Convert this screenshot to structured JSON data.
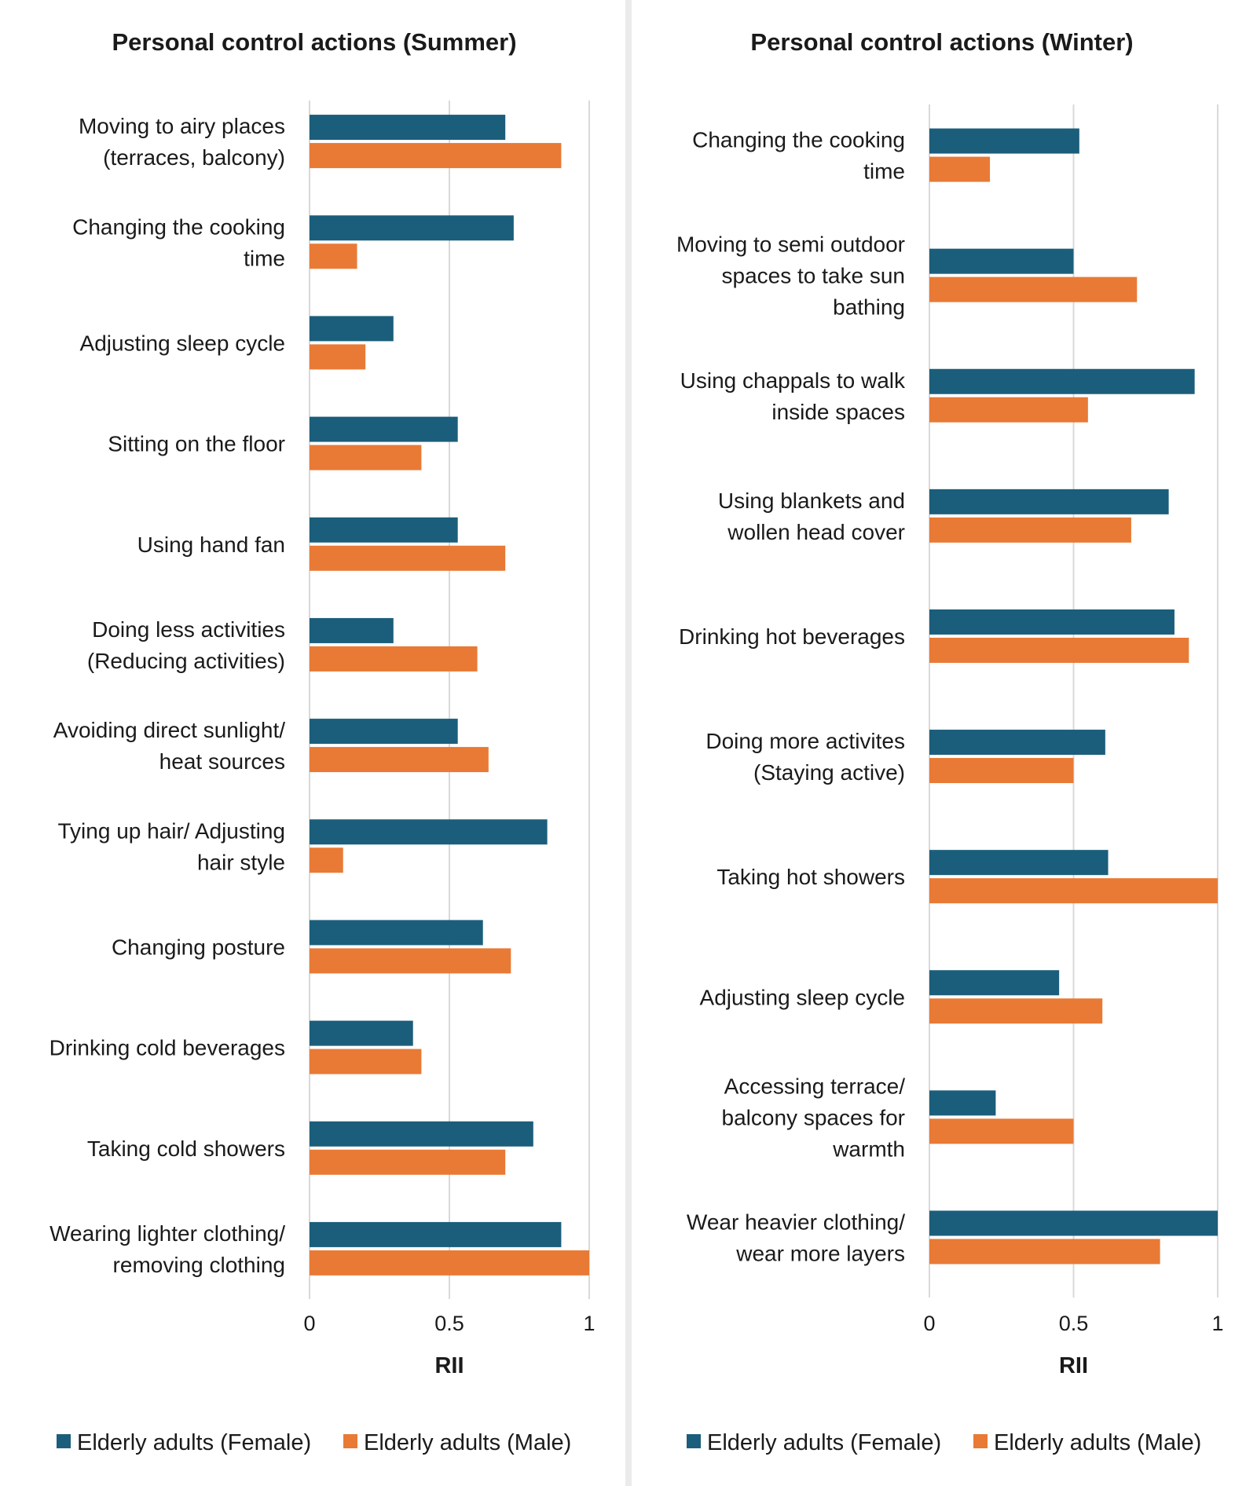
{
  "chart_data": [
    {
      "type": "bar",
      "orientation": "horizontal",
      "title": "Personal control actions (Summer)",
      "xlabel": "RII",
      "ylabel": "",
      "xlim": [
        0,
        1
      ],
      "ticks": [
        "0",
        "0.5",
        "1"
      ],
      "grid": true,
      "legend_position": "bottom",
      "categories": [
        [
          "Moving to airy places",
          "(terraces, balcony)"
        ],
        [
          "Changing the cooking",
          "time"
        ],
        [
          "Adjusting sleep cycle"
        ],
        [
          "Sitting on the floor"
        ],
        [
          "Using hand fan"
        ],
        [
          "Doing less activities",
          "(Reducing activities)"
        ],
        [
          "Avoiding direct sunlight/",
          "heat sources"
        ],
        [
          "Tying up hair/ Adjusting",
          "hair style"
        ],
        [
          "Changing posture"
        ],
        [
          "Drinking cold beverages"
        ],
        [
          "Taking cold showers"
        ],
        [
          "Wearing lighter clothing/",
          "removing clothing"
        ]
      ],
      "series": [
        {
          "name": "Elderly adults (Female)",
          "color": "#1b5e7b",
          "values": [
            0.7,
            0.73,
            0.3,
            0.53,
            0.53,
            0.3,
            0.53,
            0.85,
            0.62,
            0.37,
            0.8,
            0.9
          ]
        },
        {
          "name": "Elderly adults (Male)",
          "color": "#e87a35",
          "values": [
            0.9,
            0.17,
            0.2,
            0.4,
            0.7,
            0.6,
            0.64,
            0.12,
            0.72,
            0.4,
            0.7,
            1.0
          ]
        }
      ]
    },
    {
      "type": "bar",
      "orientation": "horizontal",
      "title": "Personal control actions (Winter)",
      "xlabel": "RII",
      "ylabel": "",
      "xlim": [
        0,
        1
      ],
      "ticks": [
        "0",
        "0.5",
        "1"
      ],
      "grid": true,
      "legend_position": "bottom",
      "categories": [
        [
          "Changing the cooking",
          "time"
        ],
        [
          "Moving to semi outdoor",
          "spaces to take sun",
          "bathing"
        ],
        [
          "Using chappals to walk",
          "inside spaces"
        ],
        [
          "Using blankets and",
          "wollen head cover"
        ],
        [
          "Drinking hot beverages"
        ],
        [
          "Doing more activites",
          "(Staying active)"
        ],
        [
          "Taking hot showers"
        ],
        [
          "Adjusting sleep cycle"
        ],
        [
          "Accessing terrace/",
          "balcony spaces for",
          "warmth"
        ],
        [
          "Wear heavier clothing/",
          "wear more layers"
        ]
      ],
      "series": [
        {
          "name": "Elderly adults (Female)",
          "color": "#1b5e7b",
          "values": [
            0.52,
            0.5,
            0.92,
            0.83,
            0.85,
            0.61,
            0.62,
            0.45,
            0.23,
            1.0
          ]
        },
        {
          "name": "Elderly adults (Male)",
          "color": "#e87a35",
          "values": [
            0.21,
            0.72,
            0.55,
            0.7,
            0.9,
            0.5,
            1.0,
            0.6,
            0.5,
            0.8
          ]
        }
      ]
    }
  ]
}
